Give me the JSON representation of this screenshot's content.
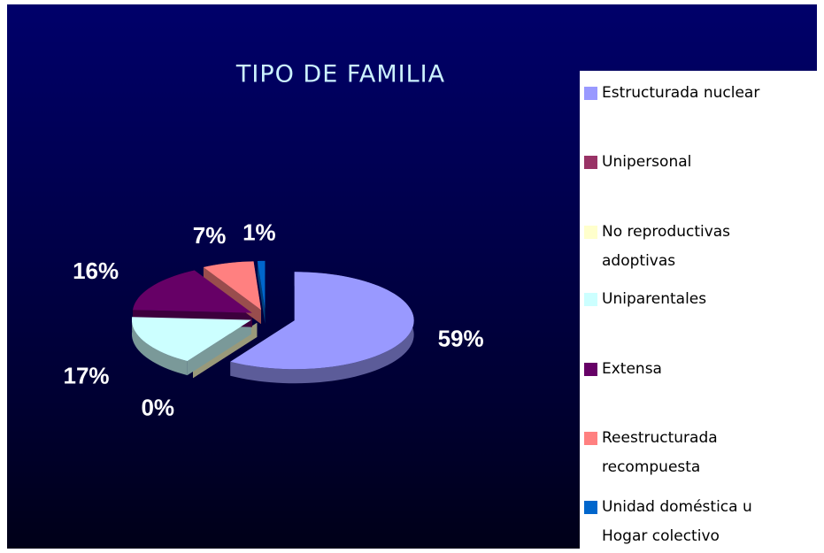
{
  "chart_data": {
    "type": "pie",
    "title": "TIPO DE FAMILIA",
    "categories": [
      "Estructurada nuclear",
      "Unipersonal",
      "No reproductivas adoptivas",
      "Uniparentales",
      "Extensa",
      "Reestructurada recompuesta",
      "Unidad doméstica u Hogar colectivo"
    ],
    "values": [
      59,
      0,
      0,
      17,
      16,
      7,
      1
    ],
    "value_labels": [
      "59%",
      "0%",
      null,
      "17%",
      "16%",
      "7%",
      "1%"
    ],
    "colors": [
      "#9999ff",
      "#993366",
      "#ffffcc",
      "#ccffff",
      "#660066",
      "#ff8080",
      "#0066cc"
    ],
    "legend": "right"
  }
}
